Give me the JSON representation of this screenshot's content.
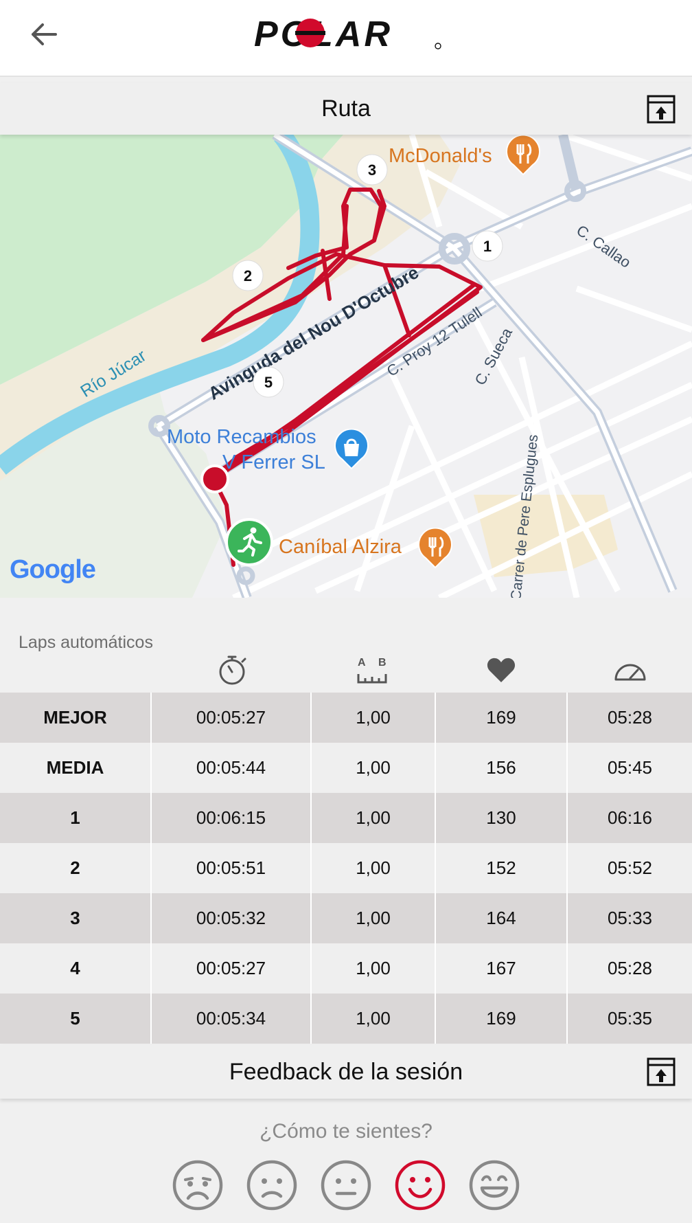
{
  "header": {
    "brand": "POLAR"
  },
  "route": {
    "title": "Ruta",
    "map": {
      "pois": {
        "mcdonalds": "McDonald's",
        "canibal": "Caníbal Alzira",
        "moto_line1": "Moto Recambios",
        "moto_line2": "V Ferrer SL"
      },
      "streets": {
        "avinguda": "Avinguda del Nou D'Octubre",
        "proy": "C. Proy 12 Tulell",
        "sueca": "C. Sueca",
        "callao": "C. Callao",
        "pere": "Carrer de Pere Esplugues",
        "rio": "Río Júcar"
      },
      "lap_markers": [
        "1",
        "2",
        "3",
        "5"
      ],
      "provider": "Google"
    }
  },
  "laps": {
    "title": "Laps automáticos",
    "column_icons": [
      "stopwatch-icon",
      "distance-icon",
      "heart-icon",
      "speedometer-icon"
    ],
    "rows": [
      {
        "label": "MEJOR",
        "time": "00:05:27",
        "distance": "1,00",
        "hr": "169",
        "pace": "05:28"
      },
      {
        "label": "MEDIA",
        "time": "00:05:44",
        "distance": "1,00",
        "hr": "156",
        "pace": "05:45"
      },
      {
        "label": "1",
        "time": "00:06:15",
        "distance": "1,00",
        "hr": "130",
        "pace": "06:16"
      },
      {
        "label": "2",
        "time": "00:05:51",
        "distance": "1,00",
        "hr": "152",
        "pace": "05:52"
      },
      {
        "label": "3",
        "time": "00:05:32",
        "distance": "1,00",
        "hr": "164",
        "pace": "05:33"
      },
      {
        "label": "4",
        "time": "00:05:27",
        "distance": "1,00",
        "hr": "167",
        "pace": "05:28"
      },
      {
        "label": "5",
        "time": "00:05:34",
        "distance": "1,00",
        "hr": "169",
        "pace": "05:35"
      }
    ]
  },
  "feedback": {
    "title": "Feedback de la sesión",
    "question": "¿Cómo te sientes?",
    "moods": [
      "very-sad-face-icon",
      "sad-face-icon",
      "neutral-face-icon",
      "happy-face-icon",
      "very-happy-face-icon"
    ],
    "selected_index": 3
  },
  "colors": {
    "brand_red": "#d10a2c",
    "start_green": "#3bb55a",
    "poi_orange": "#e5832d",
    "poi_blue": "#2b8fe0"
  }
}
